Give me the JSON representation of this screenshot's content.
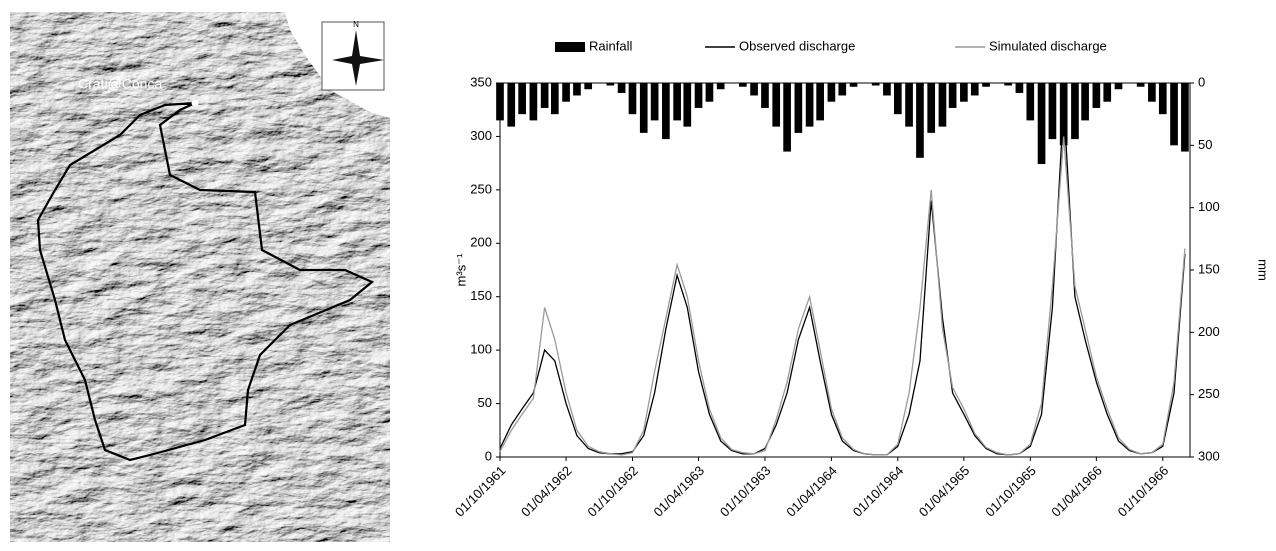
{
  "map": {
    "label": "Crati@Conca",
    "north": "N"
  },
  "chart_data": {
    "type": "combo",
    "x": [
      "01/10/1961",
      "01/11/1961",
      "01/12/1961",
      "01/01/1962",
      "01/02/1962",
      "01/03/1962",
      "01/04/1962",
      "01/05/1962",
      "01/06/1962",
      "01/07/1962",
      "01/08/1962",
      "01/09/1962",
      "01/10/1962",
      "01/11/1962",
      "01/12/1962",
      "01/01/1963",
      "01/02/1963",
      "01/03/1963",
      "01/04/1963",
      "01/05/1963",
      "01/06/1963",
      "01/07/1963",
      "01/08/1963",
      "01/09/1963",
      "01/10/1963",
      "01/11/1963",
      "01/12/1963",
      "01/01/1964",
      "01/02/1964",
      "01/03/1964",
      "01/04/1964",
      "01/05/1964",
      "01/06/1964",
      "01/07/1964",
      "01/08/1964",
      "01/09/1964",
      "01/10/1964",
      "01/11/1964",
      "01/12/1964",
      "01/01/1965",
      "01/02/1965",
      "01/03/1965",
      "01/04/1965",
      "01/05/1965",
      "01/06/1965",
      "01/07/1965",
      "01/08/1965",
      "01/09/1965",
      "01/10/1965",
      "01/11/1965",
      "01/12/1965",
      "01/01/1966",
      "01/02/1966",
      "01/03/1966",
      "01/04/1966",
      "01/05/1966",
      "01/06/1966",
      "01/07/1966",
      "01/08/1966",
      "01/09/1966",
      "01/10/1966",
      "01/11/1966",
      "01/12/1966"
    ],
    "series": [
      {
        "name": "Rainfall",
        "type": "bar",
        "axis": "y2",
        "color": "#000000",
        "values": [
          30,
          35,
          25,
          30,
          20,
          25,
          15,
          10,
          5,
          0,
          2,
          8,
          25,
          40,
          30,
          45,
          30,
          35,
          20,
          15,
          5,
          0,
          3,
          10,
          20,
          35,
          55,
          40,
          35,
          30,
          15,
          10,
          3,
          0,
          2,
          10,
          25,
          35,
          60,
          40,
          35,
          20,
          15,
          10,
          3,
          0,
          2,
          8,
          30,
          65,
          45,
          50,
          45,
          30,
          20,
          15,
          5,
          0,
          3,
          15,
          25,
          50,
          55
        ]
      },
      {
        "name": "Observed discharge",
        "type": "line",
        "color": "#000000",
        "values": [
          8,
          30,
          45,
          60,
          100,
          90,
          50,
          20,
          8,
          4,
          3,
          3,
          5,
          20,
          60,
          120,
          170,
          140,
          80,
          40,
          15,
          6,
          3,
          3,
          8,
          30,
          60,
          110,
          140,
          90,
          40,
          15,
          6,
          3,
          2,
          2,
          10,
          40,
          90,
          240,
          130,
          60,
          40,
          20,
          8,
          3,
          2,
          3,
          10,
          40,
          140,
          330,
          150,
          110,
          70,
          40,
          15,
          6,
          3,
          4,
          10,
          60,
          190
        ]
      },
      {
        "name": "Simulated discharge",
        "type": "line",
        "color": "#9a9a9a",
        "values": [
          5,
          25,
          40,
          55,
          140,
          110,
          60,
          25,
          10,
          5,
          3,
          2,
          4,
          25,
          80,
          130,
          180,
          150,
          90,
          45,
          18,
          7,
          4,
          3,
          6,
          35,
          70,
          120,
          150,
          100,
          45,
          18,
          7,
          3,
          2,
          2,
          12,
          60,
          140,
          250,
          120,
          65,
          45,
          22,
          9,
          4,
          2,
          3,
          12,
          50,
          160,
          300,
          160,
          120,
          75,
          45,
          18,
          7,
          3,
          4,
          12,
          70,
          195
        ]
      }
    ],
    "ylabel": "m³s⁻¹",
    "y2label": "mm",
    "xlim": [
      "01/10/1961",
      "15/12/1966"
    ],
    "xticks": [
      "01/10/1961",
      "01/04/1962",
      "01/10/1962",
      "01/04/1963",
      "01/10/1963",
      "01/04/1964",
      "01/10/1964",
      "01/04/1965",
      "01/10/1965",
      "01/04/1966",
      "01/10/1966"
    ],
    "ylim": [
      0,
      350
    ],
    "yticks": [
      0,
      50,
      100,
      150,
      200,
      250,
      300,
      350
    ],
    "y2lim": [
      300,
      0
    ],
    "y2ticks": [
      0,
      50,
      100,
      150,
      200,
      250,
      300
    ],
    "legend": "top"
  }
}
